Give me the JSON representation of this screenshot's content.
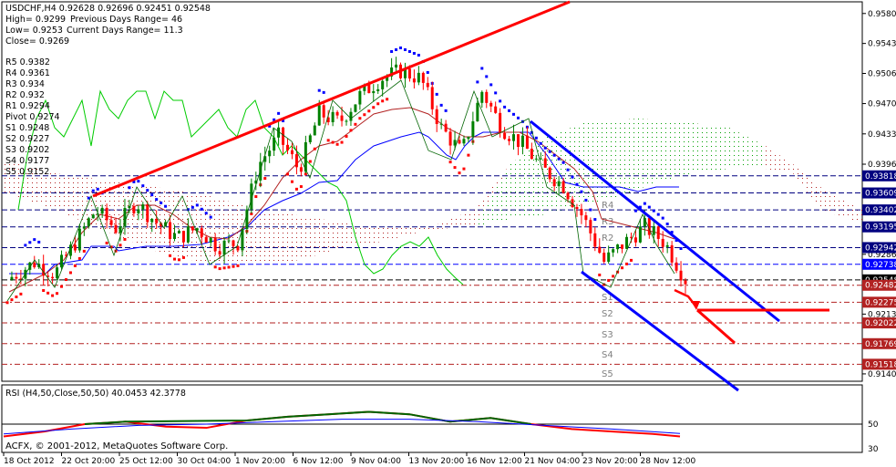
{
  "window": {
    "header_line": "USDCHF,H4  0.92628 0.92696 0.92451 0.92548",
    "stats": {
      "high": "High= 0.9299",
      "prev_range": "Previous Days Range= 46",
      "low": "Low= 0.9253",
      "cur_range": "Current Days Range= 11.3",
      "close": "Close= 0.9269"
    },
    "copyright": "ACFX, © 2001-2012, MetaQuotes Software Corp.",
    "rsi_label": "RSI (H4,50,Close,50,50) 40.0453 42.3778"
  },
  "pivots": [
    {
      "name": "R5",
      "value": "0.9382"
    },
    {
      "name": "R4",
      "value": "0.9361"
    },
    {
      "name": "R3",
      "value": "0.934"
    },
    {
      "name": "R2",
      "value": "0.932"
    },
    {
      "name": "R1",
      "value": "0.9294"
    },
    {
      "name": "Pivot",
      "value": "0.9274"
    },
    {
      "name": "S1",
      "value": "0.9248"
    },
    {
      "name": "S2",
      "value": "0.9227"
    },
    {
      "name": "S3",
      "value": "0.9202"
    },
    {
      "name": "S4",
      "value": "0.9177"
    },
    {
      "name": "S5",
      "value": "0.9152"
    }
  ],
  "level_tags": [
    "R4",
    "R3",
    "R2",
    "S1",
    "S2",
    "S3",
    "S4",
    "S5"
  ],
  "chart_data": {
    "type": "line",
    "symbol": "USDCHF",
    "timeframe": "H4",
    "ylim": [
      0.9131,
      0.9592
    ],
    "price_scale": [
      "0.95800",
      "0.95434",
      "0.95068",
      "0.94700",
      "0.94330",
      "0.93960",
      "0.93600",
      "0.92860",
      "0.92130",
      "0.91400"
    ],
    "price_tags": [
      {
        "value": "0.93818",
        "price": 0.93818,
        "color": "#000080"
      },
      {
        "value": "0.93609",
        "price": 0.93609,
        "color": "#000080"
      },
      {
        "value": "0.93402",
        "price": 0.93402,
        "color": "#000080"
      },
      {
        "value": "0.93195",
        "price": 0.93195,
        "color": "#000080"
      },
      {
        "value": "0.92942",
        "price": 0.92942,
        "color": "#000080"
      },
      {
        "value": "0.92738",
        "price": 0.92738,
        "color": "#0000ff"
      },
      {
        "value": "0.92548",
        "price": 0.92548,
        "color": "#000000"
      },
      {
        "value": "0.92482",
        "price": 0.92482,
        "color": "#b22222"
      },
      {
        "value": "0.92275",
        "price": 0.92275,
        "color": "#b22222"
      },
      {
        "value": "0.92022",
        "price": 0.92022,
        "color": "#b22222"
      },
      {
        "value": "0.91769",
        "price": 0.91769,
        "color": "#b22222"
      },
      {
        "value": "0.91518",
        "price": 0.91518,
        "color": "#b22222"
      }
    ],
    "x_labels": [
      "18 Oct 2012",
      "22 Oct 20:00",
      "25 Oct 12:00",
      "30 Oct 04:00",
      "1 Nov 20:00",
      "6 Nov 12:00",
      "9 Nov 04:00",
      "13 Nov 20:00",
      "16 Nov 12:00",
      "21 Nov 04:00",
      "23 Nov 20:00",
      "28 Nov 12:00"
    ],
    "close_path": [
      [
        0,
        0.9255
      ],
      [
        4,
        0.9276
      ],
      [
        7,
        0.9262
      ],
      [
        10,
        0.93
      ],
      [
        13,
        0.934
      ],
      [
        16,
        0.9318
      ],
      [
        19,
        0.935
      ],
      [
        22,
        0.9325
      ],
      [
        25,
        0.9306
      ],
      [
        28,
        0.9318
      ],
      [
        31,
        0.9296
      ],
      [
        34,
        0.93
      ],
      [
        37,
        0.9395
      ],
      [
        40,
        0.943
      ],
      [
        43,
        0.9389
      ],
      [
        46,
        0.9458
      ],
      [
        49,
        0.9447
      ],
      [
        52,
        0.948
      ],
      [
        55,
        0.95
      ],
      [
        58,
        0.951
      ],
      [
        61,
        0.95
      ],
      [
        64,
        0.944
      ],
      [
        67,
        0.941
      ],
      [
        70,
        0.9485
      ],
      [
        73,
        0.944
      ],
      [
        76,
        0.942
      ],
      [
        79,
        0.939
      ],
      [
        82,
        0.937
      ],
      [
        85,
        0.933
      ],
      [
        88,
        0.9277
      ],
      [
        91,
        0.93
      ],
      [
        94,
        0.932
      ],
      [
        97,
        0.93
      ],
      [
        100,
        0.9255
      ]
    ],
    "rsi": {
      "label": "RSI (H4,50,Close,50,50) 40.0453 42.3778",
      "level": 50,
      "ylim": [
        30,
        70
      ],
      "scale": [
        "50",
        "30"
      ],
      "values": [
        [
          0,
          40
        ],
        [
          6,
          44
        ],
        [
          12,
          50
        ],
        [
          18,
          52
        ],
        [
          24,
          48
        ],
        [
          30,
          47
        ],
        [
          36,
          53
        ],
        [
          42,
          56
        ],
        [
          48,
          58
        ],
        [
          54,
          60
        ],
        [
          60,
          58
        ],
        [
          66,
          52
        ],
        [
          72,
          55
        ],
        [
          78,
          50
        ],
        [
          84,
          46
        ],
        [
          90,
          44
        ],
        [
          96,
          42
        ],
        [
          100,
          40
        ]
      ],
      "signal": [
        [
          0,
          42
        ],
        [
          10,
          46
        ],
        [
          20,
          49
        ],
        [
          30,
          50
        ],
        [
          40,
          52
        ],
        [
          50,
          54
        ],
        [
          60,
          54
        ],
        [
          70,
          52
        ],
        [
          80,
          49
        ],
        [
          90,
          46
        ],
        [
          100,
          42.4
        ]
      ]
    }
  },
  "colors": {
    "bull": "#008000",
    "bear": "#ff0000",
    "trend_red": "#ff0000",
    "channel_blue": "#0000ff",
    "kijun": "#0000ff",
    "tenkan": "#b22222",
    "chikou": "#00cc00",
    "grid_blue": "#000080",
    "grid_red": "#b22222",
    "rsi_main": "#ff0000",
    "rsi_green": "#006400",
    "rsi_signal": "#0000ff"
  }
}
